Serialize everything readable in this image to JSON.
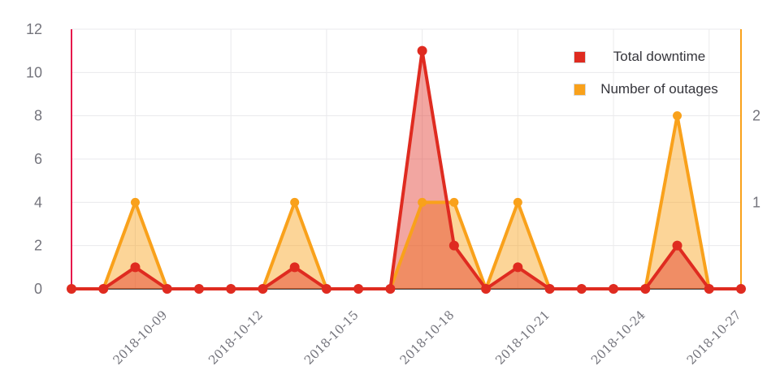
{
  "chart_data": {
    "type": "line",
    "title": "",
    "background": "#ffffff",
    "x": [
      "2018-10-07",
      "2018-10-08",
      "2018-10-09",
      "2018-10-10",
      "2018-10-11",
      "2018-10-12",
      "2018-10-13",
      "2018-10-14",
      "2018-10-15",
      "2018-10-16",
      "2018-10-17",
      "2018-10-18",
      "2018-10-19",
      "2018-10-20",
      "2018-10-21",
      "2018-10-22",
      "2018-10-23",
      "2018-10-24",
      "2018-10-25",
      "2018-10-26",
      "2018-10-27",
      "2018-10-28"
    ],
    "x_tick_labels": [
      "2018-10-09",
      "2018-10-12",
      "2018-10-15",
      "2018-10-18",
      "2018-10-21",
      "2018-10-24",
      "2018-10-27"
    ],
    "series": [
      {
        "name": "Total downtime",
        "axis": "left",
        "color": "#df2b20",
        "fill_opacity": 0.42,
        "values": [
          0,
          0,
          1,
          0,
          0,
          0,
          0,
          1,
          0,
          0,
          0,
          11,
          2,
          0,
          1,
          0,
          0,
          0,
          0,
          2,
          0,
          0
        ]
      },
      {
        "name": "Number of outages",
        "axis": "right",
        "color": "#f9a11b",
        "fill_opacity": 0.45,
        "values": [
          0,
          0,
          1,
          0,
          0,
          0,
          0,
          1,
          0,
          0,
          0,
          1,
          1,
          0,
          1,
          0,
          0,
          0,
          0,
          2,
          0,
          0
        ]
      }
    ],
    "left_axis": {
      "min": 0,
      "max": 12,
      "tick_labels": [
        0,
        2,
        4,
        6,
        8,
        10,
        12
      ],
      "axis_color": "#e6194b"
    },
    "right_axis": {
      "min": 0,
      "max": 3,
      "tick_labels": [
        1,
        2
      ],
      "axis_color": "#f9a11b"
    },
    "grid": true,
    "legend_position": "top-right",
    "colors": {
      "grid": "#eaeaec",
      "baseline": "#4c4c4e",
      "tick_text": "#74747c",
      "legend_text": "#35353b"
    }
  }
}
